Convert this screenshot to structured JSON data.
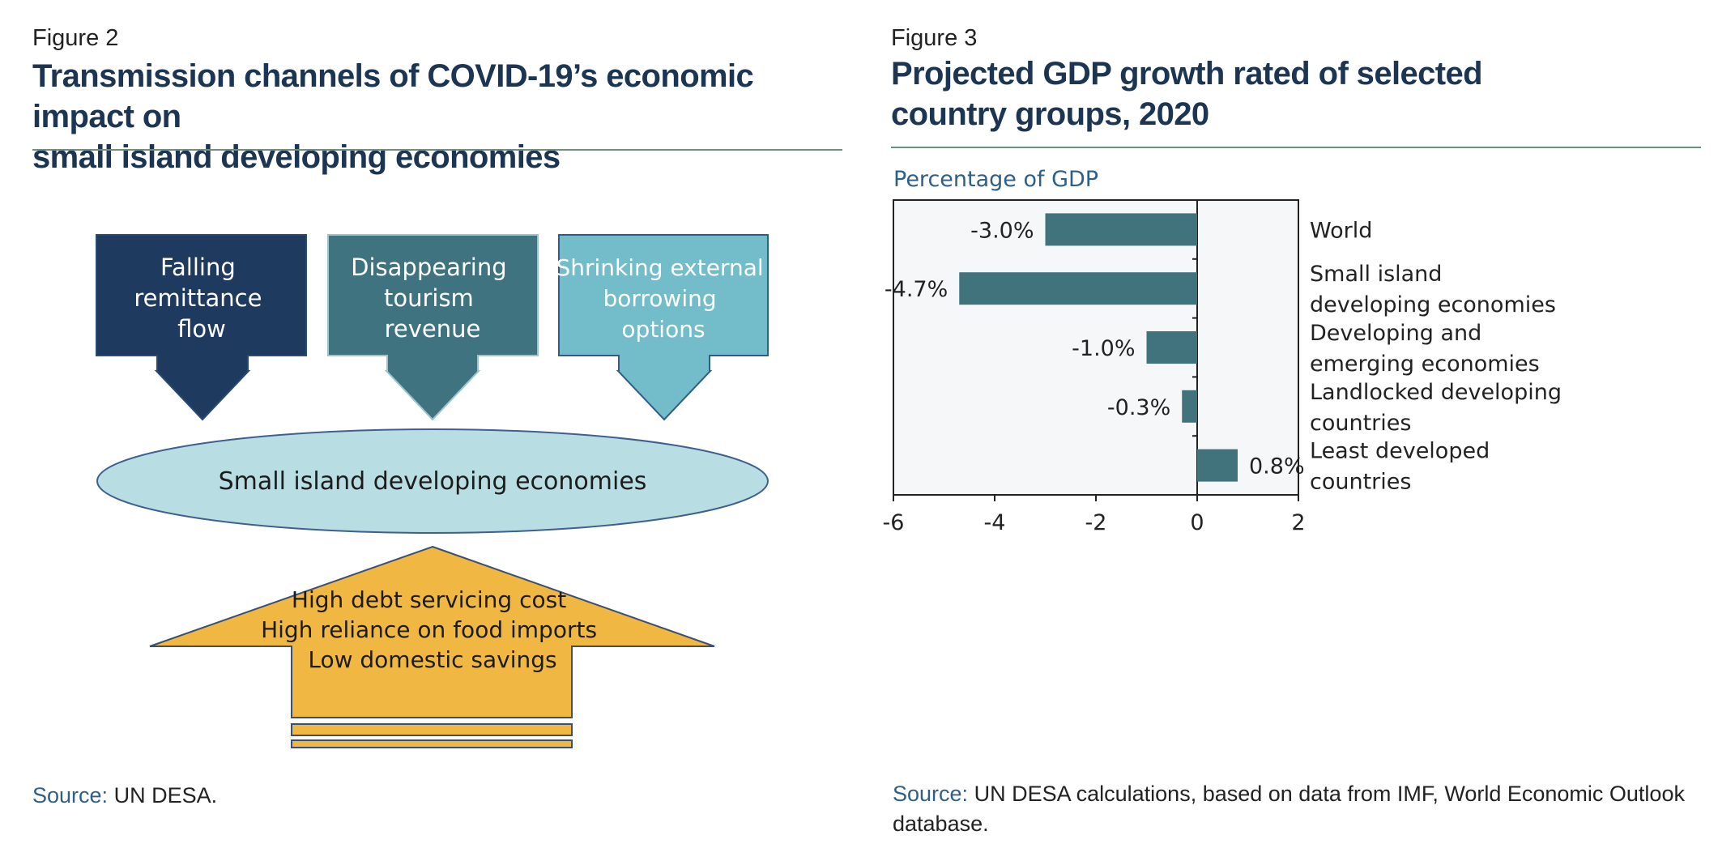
{
  "figure2": {
    "label": "Figure 2",
    "title_line1": "Transmission channels of COVID-19’s economic impact on",
    "title_line2": "small island developing economies",
    "boxes": [
      {
        "lines": [
          "Falling",
          "remittance",
          "flow"
        ],
        "color": "#1f3a5f"
      },
      {
        "lines": [
          "Disappearing",
          "tourism",
          "revenue"
        ],
        "color": "#3f7380"
      },
      {
        "lines": [
          "Shrinking external",
          "borrowing",
          "options"
        ],
        "color": "#73bcc9"
      }
    ],
    "ellipse_label": "Small island developing economies",
    "ellipse_color": "#b8dde3",
    "arrow_lines": [
      "High debt servicing cost",
      "High reliance on food imports",
      "Low domestic savings"
    ],
    "arrow_color": "#f0b843",
    "source_label": "Source:",
    "source_text": "UN DESA."
  },
  "figure3": {
    "label": "Figure 3",
    "title_line1": "Projected GDP growth rated of selected",
    "title_line2": "country groups, 2020",
    "source_label": "Source:",
    "source_text_line1": "UN DESA calculations, based on data from IMF, World Economic Outlook",
    "source_text_line2": "database."
  },
  "chart_data": {
    "type": "bar",
    "orientation": "horizontal",
    "ylabel": "Percentage of GDP",
    "categories": [
      [
        "World"
      ],
      [
        "Small island",
        "developing economies"
      ],
      [
        "Developing and",
        "emerging economies"
      ],
      [
        "Landlocked developing",
        "countries"
      ],
      [
        "Least developed",
        "countries"
      ]
    ],
    "values": [
      -3.0,
      -4.7,
      -1.0,
      -0.3,
      0.8
    ],
    "value_labels": [
      "-3.0%",
      "-4.7%",
      "-1.0%",
      "-0.3%",
      "0.8%"
    ],
    "xlim": [
      -6,
      2
    ],
    "xticks": [
      -6,
      -4,
      -2,
      0,
      2
    ],
    "bar_color": "#41737d",
    "plot_background": "#f6f7f9",
    "grid": false
  }
}
